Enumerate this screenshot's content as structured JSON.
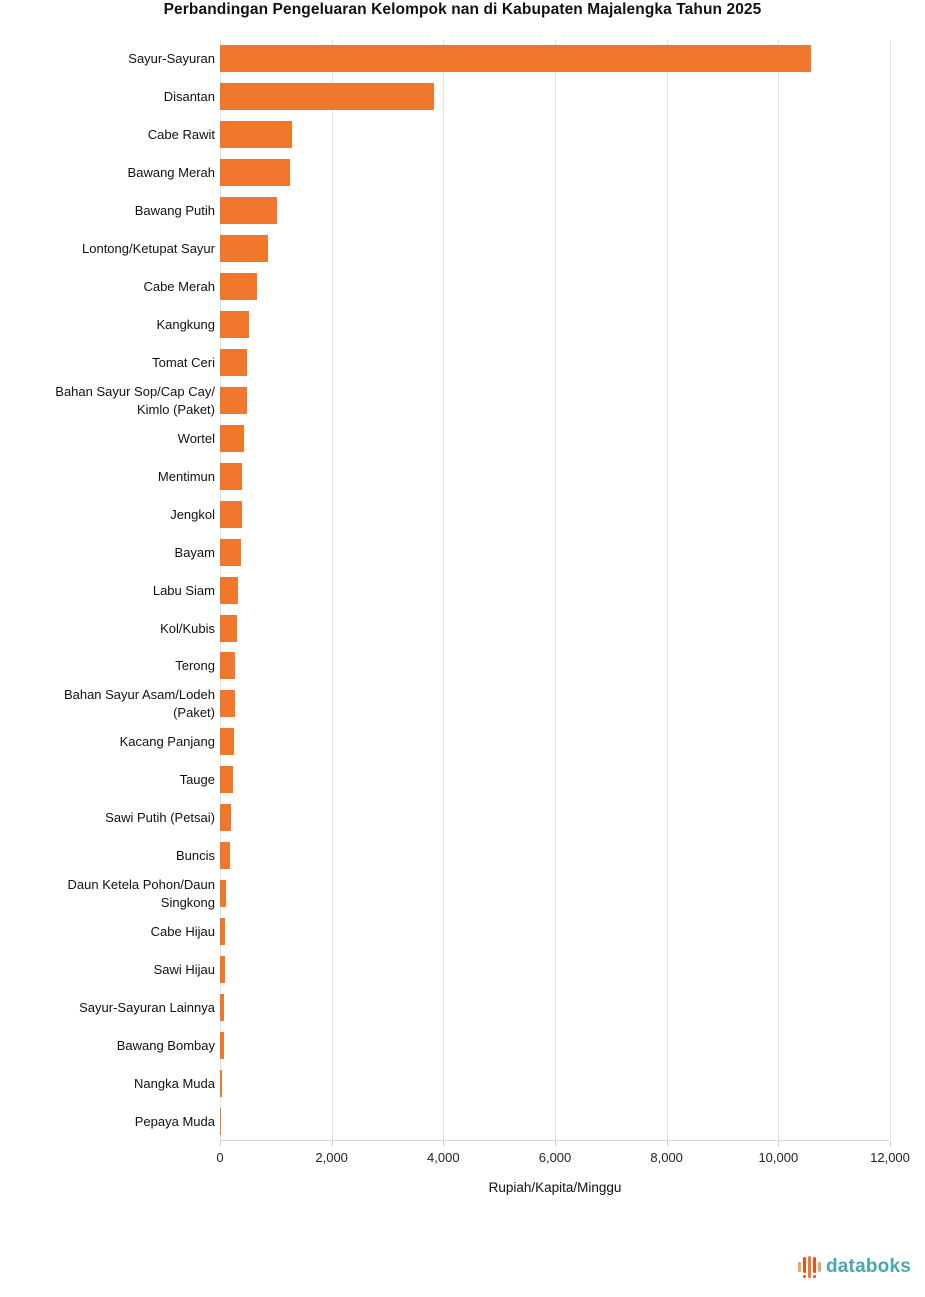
{
  "title": "Perbandingan Pengeluaran Kelompok nan di Kabupaten Majalengka Tahun 2025",
  "chart_data": {
    "type": "bar",
    "orientation": "horizontal",
    "title": "Perbandingan Pengeluaran Kelompok nan di Kabupaten Majalengka Tahun 2025",
    "xlabel": "Rupiah/Kapita/Minggu",
    "ylabel": "",
    "xlim": [
      0,
      12000
    ],
    "grid": true,
    "gridline_color": "#e3e3e3",
    "bar_color": "#f0772c",
    "categories": [
      "Sayur-Sayuran",
      "Disantan",
      "Cabe Rawit",
      "Bawang Merah",
      "Bawang Putih",
      "Lontong/Ketupat Sayur",
      "Cabe Merah",
      "Kangkung",
      "Tomat Ceri",
      "Bahan Sayur Sop/Cap Cay/\nKimlo (Paket)",
      "Wortel",
      "Mentimun",
      "Jengkol",
      "Bayam",
      "Labu Siam",
      "Kol/Kubis",
      "Terong",
      "Bahan Sayur Asam/Lodeh\n(Paket)",
      "Kacang Panjang",
      "Tauge",
      "Sawi Putih (Petsai)",
      "Buncis",
      "Daun Ketela Pohon/Daun\nSingkong",
      "Cabe Hijau",
      "Sawi Hijau",
      "Sayur-Sayuran Lainnya",
      "Bawang Bombay",
      "Nangka Muda",
      "Pepaya Muda"
    ],
    "values": [
      10580,
      3840,
      1285,
      1245,
      1015,
      865,
      670,
      525,
      490,
      478,
      430,
      400,
      390,
      370,
      320,
      305,
      275,
      263,
      245,
      227,
      190,
      175,
      107,
      95,
      85,
      77,
      66,
      40,
      23
    ],
    "x_ticks": [
      {
        "value": 0,
        "label": "0"
      },
      {
        "value": 2000,
        "label": "2,000"
      },
      {
        "value": 4000,
        "label": "4,000"
      },
      {
        "value": 6000,
        "label": "6,000"
      },
      {
        "value": 8000,
        "label": "8,000"
      },
      {
        "value": 10000,
        "label": "10,000"
      },
      {
        "value": 12000,
        "label": "12,000"
      }
    ]
  },
  "footer": {
    "brand": "databoks",
    "brand_color": "#46a9ad",
    "icon_bar_colors": [
      "#f5a05a",
      "#ee4d23",
      "#f0772c",
      "#ee4d23",
      "#f5a05a"
    ],
    "icon_bar_heights": [
      10,
      16,
      22,
      16,
      10
    ]
  }
}
